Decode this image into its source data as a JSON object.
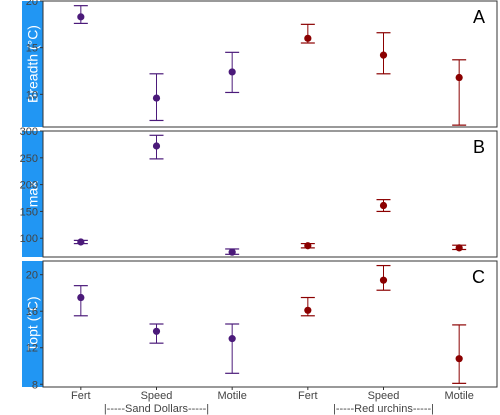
{
  "chart_data": {
    "type": "scatter",
    "error_bars": true,
    "categories": [
      "Fert",
      "Speed",
      "Motile",
      "Fert",
      "Speed",
      "Motile"
    ],
    "groups": [
      {
        "label": "|-----Sand Dollars-----|",
        "color": "#4b1a7a",
        "categories": [
          "Fert",
          "Speed",
          "Motile"
        ]
      },
      {
        "label": "|-----Red urchins-----|",
        "color": "#8b0000",
        "categories": [
          "Fert",
          "Speed",
          "Motile"
        ]
      }
    ],
    "panels": [
      {
        "strip_label": "Breadth (°C)",
        "letter": "A",
        "ylim": [
          6.5,
          20
        ],
        "yticks": [
          "20",
          "15",
          "10"
        ],
        "ytick_values": [
          20,
          15,
          10
        ],
        "points": [
          {
            "y": 18.3,
            "lo": 17.6,
            "hi": 19.5
          },
          {
            "y": 9.6,
            "lo": 7.2,
            "hi": 12.2
          },
          {
            "y": 12.4,
            "lo": 10.2,
            "hi": 14.5
          },
          {
            "y": 16.0,
            "lo": 15.5,
            "hi": 17.5
          },
          {
            "y": 14.2,
            "lo": 12.2,
            "hi": 16.6
          },
          {
            "y": 11.8,
            "lo": 6.7,
            "hi": 13.7
          }
        ]
      },
      {
        "strip_label": "max",
        "letter": "B",
        "ylim": [
          65,
          300
        ],
        "yticks": [
          "300",
          "250",
          "200",
          "150",
          "100"
        ],
        "ytick_values": [
          300,
          250,
          200,
          150,
          100
        ],
        "points": [
          {
            "y": 93,
            "lo": 90,
            "hi": 96
          },
          {
            "y": 272,
            "lo": 248,
            "hi": 292
          },
          {
            "y": 74,
            "lo": 70,
            "hi": 80
          },
          {
            "y": 86,
            "lo": 82,
            "hi": 90
          },
          {
            "y": 161,
            "lo": 150,
            "hi": 172
          },
          {
            "y": 82,
            "lo": 79,
            "hi": 87
          }
        ]
      },
      {
        "strip_label": "Topt (°C)",
        "letter": "C",
        "ylim": [
          7.7,
          21.5
        ],
        "yticks": [
          "20",
          "16",
          "12",
          "8"
        ],
        "ytick_values": [
          20,
          16,
          12,
          8
        ],
        "points": [
          {
            "y": 17.5,
            "lo": 15.5,
            "hi": 18.8
          },
          {
            "y": 13.8,
            "lo": 12.5,
            "hi": 14.6
          },
          {
            "y": 13.0,
            "lo": 9.2,
            "hi": 14.6
          },
          {
            "y": 16.1,
            "lo": 15.5,
            "hi": 17.5
          },
          {
            "y": 19.4,
            "lo": 18.3,
            "hi": 21.0
          },
          {
            "y": 10.8,
            "lo": 8.1,
            "hi": 14.5
          }
        ]
      }
    ]
  }
}
